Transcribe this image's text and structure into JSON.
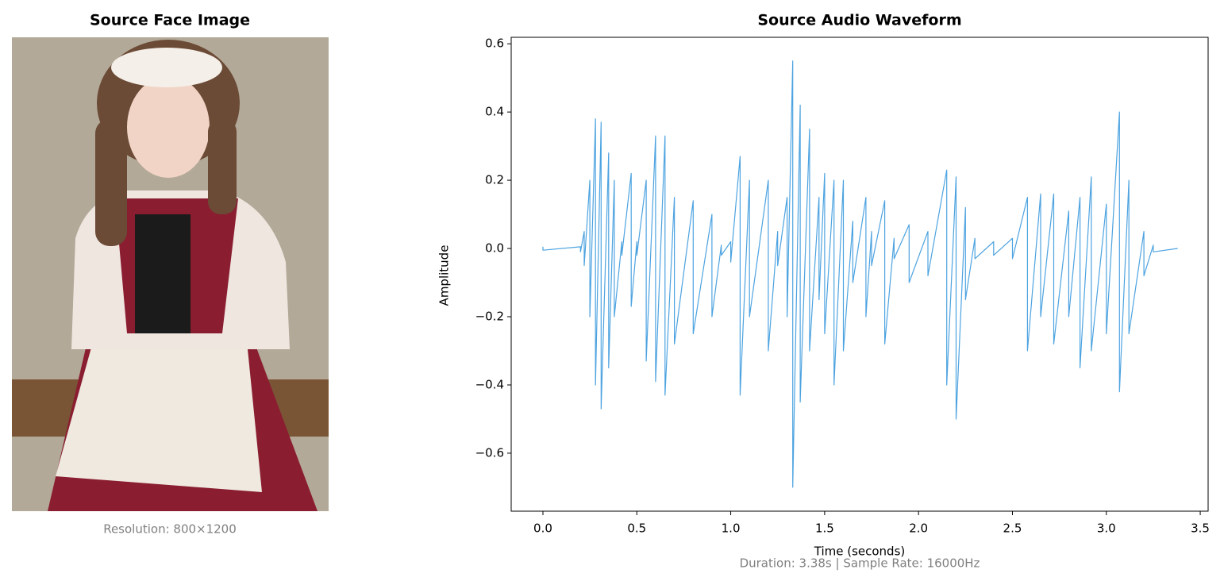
{
  "image_panel": {
    "title": "Source Face Image",
    "caption": "Resolution: 800×1200"
  },
  "chart_data": {
    "type": "line",
    "title": "Source Audio Waveform",
    "x_label": "Time (seconds)",
    "y_label": "Amplitude",
    "footnote": "Duration: 3.38s | Sample Rate: 16000Hz",
    "color": "#4da3e0",
    "x": [
      0,
      0,
      0.2,
      0.2,
      0.22,
      0.22,
      0.25,
      0.25,
      0.28,
      0.28,
      0.31,
      0.31,
      0.35,
      0.35,
      0.38,
      0.38,
      0.42,
      0.42,
      0.47,
      0.47,
      0.5,
      0.5,
      0.55,
      0.55,
      0.6,
      0.6,
      0.65,
      0.65,
      0.7,
      0.7,
      0.8,
      0.8,
      0.9,
      0.9,
      0.95,
      0.95,
      1.0,
      1.0,
      1.05,
      1.05,
      1.1,
      1.1,
      1.2,
      1.2,
      1.25,
      1.25,
      1.3,
      1.3,
      1.33,
      1.33,
      1.37,
      1.37,
      1.42,
      1.42,
      1.47,
      1.47,
      1.5,
      1.5,
      1.55,
      1.55,
      1.6,
      1.6,
      1.65,
      1.65,
      1.72,
      1.72,
      1.75,
      1.75,
      1.82,
      1.82,
      1.87,
      1.87,
      1.95,
      1.95,
      2.05,
      2.05,
      2.15,
      2.15,
      2.2,
      2.2,
      2.25,
      2.25,
      2.3,
      2.3,
      2.4,
      2.4,
      2.5,
      2.5,
      2.58,
      2.58,
      2.65,
      2.65,
      2.72,
      2.72,
      2.8,
      2.8,
      2.86,
      2.86,
      2.92,
      2.92,
      3.0,
      3.0,
      3.07,
      3.07,
      3.12,
      3.12,
      3.2,
      3.2,
      3.25,
      3.25,
      3.38,
      3.38
    ],
    "values": [
      0.005,
      -0.005,
      0.005,
      -0.01,
      0.05,
      -0.05,
      0.2,
      -0.2,
      0.38,
      -0.4,
      0.37,
      -0.47,
      0.28,
      -0.35,
      0.2,
      -0.2,
      0.02,
      -0.02,
      0.22,
      -0.17,
      0.02,
      -0.02,
      0.2,
      -0.33,
      0.33,
      -0.39,
      0.33,
      -0.43,
      0.15,
      -0.28,
      0.14,
      -0.25,
      0.1,
      -0.2,
      0.01,
      -0.02,
      0.02,
      -0.04,
      0.27,
      -0.43,
      0.2,
      -0.2,
      0.2,
      -0.3,
      0.05,
      -0.05,
      0.15,
      -0.2,
      0.55,
      -0.7,
      0.42,
      -0.45,
      0.35,
      -0.3,
      0.15,
      -0.15,
      0.22,
      -0.25,
      0.2,
      -0.4,
      0.2,
      -0.3,
      0.08,
      -0.1,
      0.15,
      -0.2,
      0.05,
      -0.05,
      0.14,
      -0.28,
      0.03,
      -0.03,
      0.07,
      -0.1,
      0.05,
      -0.08,
      0.23,
      -0.4,
      0.21,
      -0.5,
      0.12,
      -0.15,
      0.03,
      -0.03,
      0.02,
      -0.02,
      0.03,
      -0.03,
      0.15,
      -0.3,
      0.16,
      -0.2,
      0.16,
      -0.28,
      0.11,
      -0.2,
      0.15,
      -0.35,
      0.21,
      -0.3,
      0.13,
      -0.25,
      0.4,
      -0.42,
      0.2,
      -0.25,
      0.05,
      -0.08,
      0.01,
      -0.01,
      0,
      0
    ],
    "xlim": [
      -0.169,
      3.542
    ],
    "ylim": [
      -0.77,
      0.619
    ],
    "xticks": [
      {
        "value": 0,
        "label": "0.0"
      },
      0.5,
      {
        "value": 1,
        "label": "1.0"
      },
      1.5,
      {
        "value": 2,
        "label": "2.0"
      },
      2.5,
      {
        "value": 3,
        "label": "3.0"
      },
      3.5
    ],
    "yticks": [
      {
        "value": -0.6,
        "label": "−0.6"
      },
      {
        "value": -0.4,
        "label": "−0.4"
      },
      {
        "value": -0.2,
        "label": "−0.2"
      },
      {
        "value": 0,
        "label": "0.0"
      },
      0.2,
      0.4,
      0.6
    ],
    "grid": false
  }
}
